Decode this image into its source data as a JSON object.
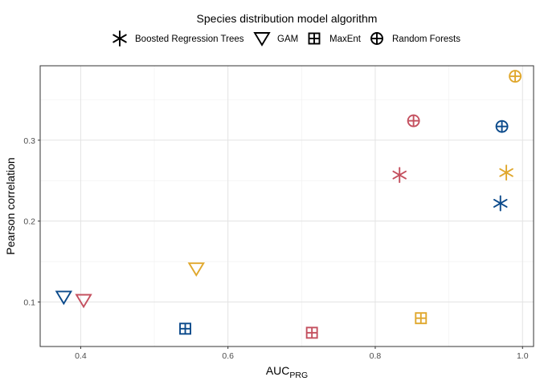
{
  "chart_data": {
    "type": "scatter",
    "xlabel": "AUC",
    "xlabel_sub": "PRG",
    "ylabel": "Pearson correlation",
    "xlim": [
      0.345,
      1.015
    ],
    "ylim": [
      0.045,
      0.392
    ],
    "xticks": [
      0.4,
      0.6,
      0.8,
      1.0
    ],
    "xtick_labels": [
      "0.4",
      "0.6",
      "0.8",
      "1.0"
    ],
    "yticks": [
      0.1,
      0.2,
      0.3
    ],
    "ytick_labels": [
      "0.1",
      "0.2",
      "0.3"
    ],
    "x_minor": [
      0.5,
      0.7,
      0.9
    ],
    "y_minor": [
      0.15,
      0.25,
      0.35
    ],
    "grid": true,
    "legend": {
      "title": "Species distribution model algorithm",
      "placement": "top",
      "entries": [
        {
          "label": "Boosted Regression Trees",
          "shape": "asterisk"
        },
        {
          "label": "GAM",
          "shape": "triangle-down"
        },
        {
          "label": "MaxEnt",
          "shape": "boxplus"
        },
        {
          "label": "Random Forests",
          "shape": "circleplus"
        }
      ]
    },
    "colors": {
      "blue": "#0b4a8b",
      "gold": "#e0a82e",
      "red": "#c4505f"
    },
    "points": [
      {
        "algorithm": "Boosted Regression Trees",
        "shape": "asterisk",
        "color": "red",
        "x": 0.833,
        "y": 0.257
      },
      {
        "algorithm": "Boosted Regression Trees",
        "shape": "asterisk",
        "color": "gold",
        "x": 0.978,
        "y": 0.26
      },
      {
        "algorithm": "Boosted Regression Trees",
        "shape": "asterisk",
        "color": "blue",
        "x": 0.97,
        "y": 0.222
      },
      {
        "algorithm": "GAM",
        "shape": "triangle-down",
        "color": "blue",
        "x": 0.377,
        "y": 0.106
      },
      {
        "algorithm": "GAM",
        "shape": "triangle-down",
        "color": "red",
        "x": 0.404,
        "y": 0.102
      },
      {
        "algorithm": "GAM",
        "shape": "triangle-down",
        "color": "gold",
        "x": 0.557,
        "y": 0.141
      },
      {
        "algorithm": "MaxEnt",
        "shape": "boxplus",
        "color": "blue",
        "x": 0.542,
        "y": 0.067
      },
      {
        "algorithm": "MaxEnt",
        "shape": "boxplus",
        "color": "red",
        "x": 0.714,
        "y": 0.062
      },
      {
        "algorithm": "MaxEnt",
        "shape": "boxplus",
        "color": "gold",
        "x": 0.862,
        "y": 0.08
      },
      {
        "algorithm": "Random Forests",
        "shape": "circleplus",
        "color": "red",
        "x": 0.852,
        "y": 0.324
      },
      {
        "algorithm": "Random Forests",
        "shape": "circleplus",
        "color": "blue",
        "x": 0.972,
        "y": 0.317
      },
      {
        "algorithm": "Random Forests",
        "shape": "circleplus",
        "color": "gold",
        "x": 0.99,
        "y": 0.379
      }
    ]
  }
}
